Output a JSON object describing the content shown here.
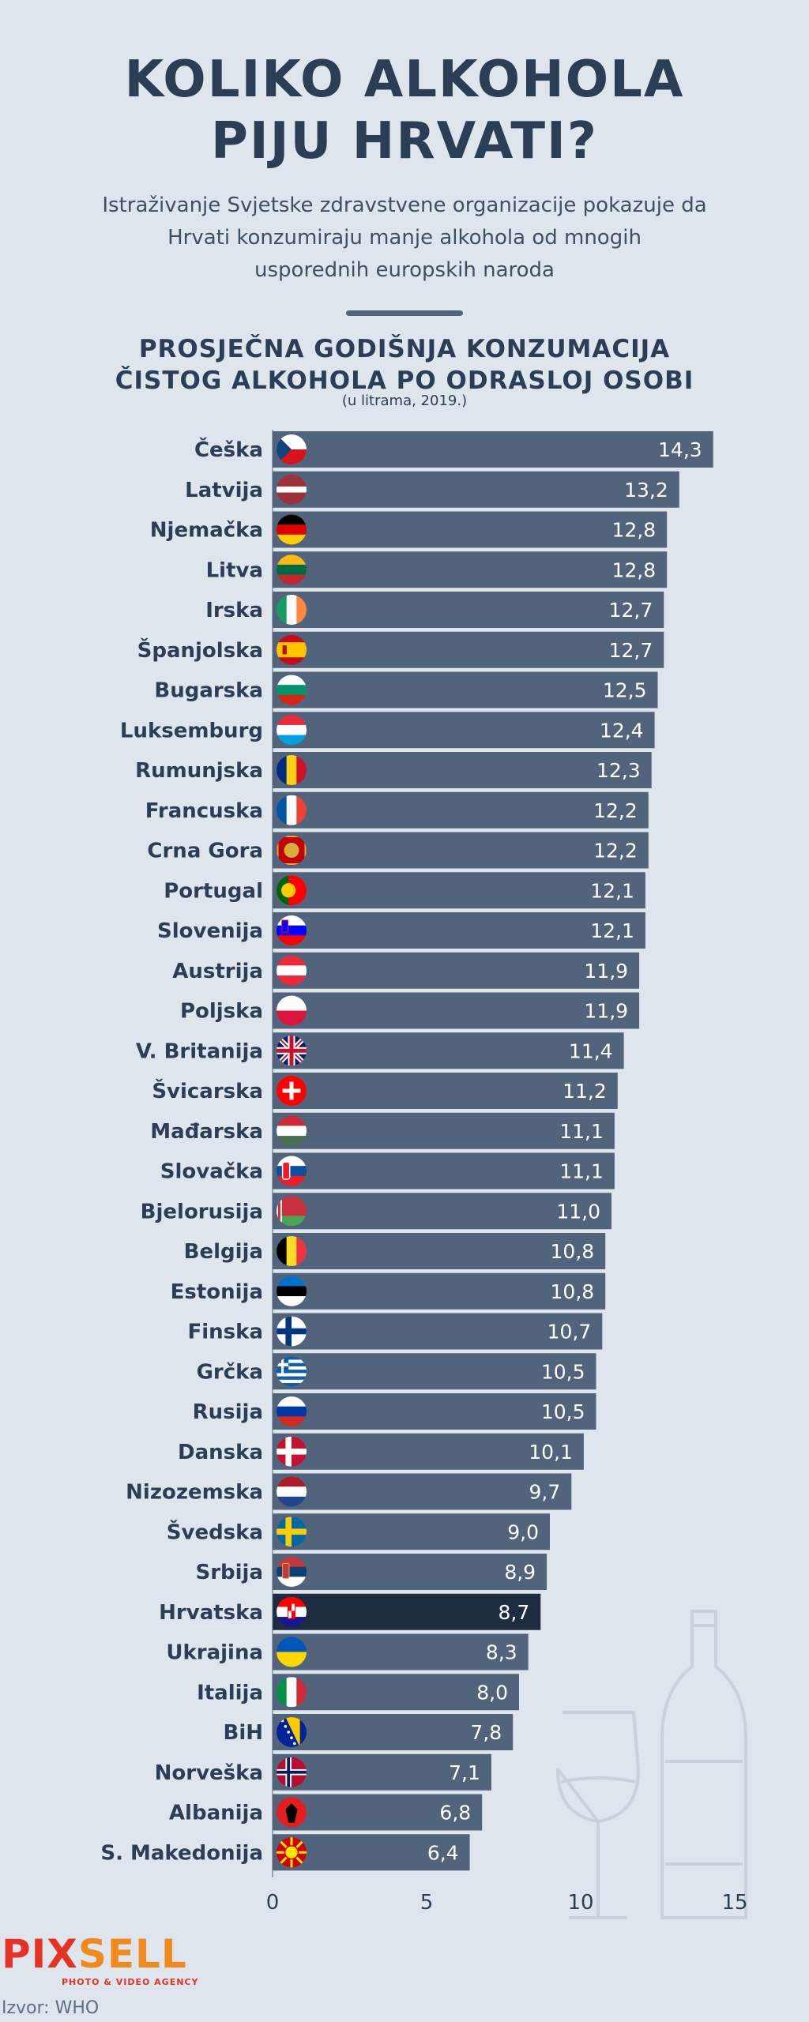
{
  "header": {
    "title_line1": "KOLIKO ALKOHOLA",
    "title_line2": "PIJU HRVATI?",
    "subtitle_line1": "Istraživanje Svjetske zdravstvene organizacije pokazuje da",
    "subtitle_line2": "Hrvati konzumiraju manje alkohola od mnogih",
    "subtitle_line3": "usporednih europskih naroda"
  },
  "colors": {
    "background": "#dfe5ec",
    "title": "#2c3e55",
    "bar": "#52647b",
    "highlight_bar": "#1e2c40",
    "bar_text": "#ffffff"
  },
  "chart_data": {
    "type": "bar",
    "orientation": "horizontal",
    "title_line1": "PROSJEČNA GODIŠNJA KONZUMACIJA",
    "title_line2": "ČISTOG ALKOHOLA PO ODRASLOJ OSOBI",
    "unit_note": "(u litrama, 2019.)",
    "categories": [
      "Češka",
      "Latvija",
      "Njemačka",
      "Litva",
      "Irska",
      "Španjolska",
      "Bugarska",
      "Luksemburg",
      "Rumunjska",
      "Francuska",
      "Crna Gora",
      "Portugal",
      "Slovenija",
      "Austrija",
      "Poljska",
      "V. Britanija",
      "Švicarska",
      "Mađarska",
      "Slovačka",
      "Bjelorusija",
      "Belgija",
      "Estonija",
      "Finska",
      "Grčka",
      "Rusija",
      "Danska",
      "Nizozemska",
      "Švedska",
      "Srbija",
      "Hrvatska",
      "Ukrajina",
      "Italija",
      "BiH",
      "Norveška",
      "Albanija",
      "S. Makedonija"
    ],
    "values": [
      14.3,
      13.2,
      12.8,
      12.8,
      12.7,
      12.7,
      12.5,
      12.4,
      12.3,
      12.2,
      12.2,
      12.1,
      12.1,
      11.9,
      11.9,
      11.4,
      11.2,
      11.1,
      11.1,
      11.0,
      10.8,
      10.8,
      10.7,
      10.5,
      10.5,
      10.1,
      9.7,
      9.0,
      8.9,
      8.7,
      8.3,
      8.0,
      7.8,
      7.1,
      6.8,
      6.4
    ],
    "value_labels": [
      "14,3",
      "13,2",
      "12,8",
      "12,8",
      "12,7",
      "12,7",
      "12,5",
      "12,4",
      "12,3",
      "12,2",
      "12,2",
      "12,1",
      "12,1",
      "11,9",
      "11,9",
      "11,4",
      "11,2",
      "11,1",
      "11,1",
      "11,0",
      "10,8",
      "10,8",
      "10,7",
      "10,5",
      "10,5",
      "10,1",
      "9,7",
      "9,0",
      "8,9",
      "8,7",
      "8,3",
      "8,0",
      "7,8",
      "7,1",
      "6,8",
      "6,4"
    ],
    "flags": [
      "cz",
      "lv",
      "de",
      "lt",
      "ie",
      "es",
      "bg",
      "lu",
      "ro",
      "fr",
      "me",
      "pt",
      "si",
      "at",
      "pl",
      "gb",
      "ch",
      "hu",
      "sk",
      "by",
      "be",
      "ee",
      "fi",
      "gr",
      "ru",
      "dk",
      "nl",
      "se",
      "rs",
      "hr",
      "ua",
      "it",
      "ba",
      "no",
      "al",
      "mk"
    ],
    "highlight": "Hrvatska",
    "xlim": [
      0,
      15
    ],
    "xticks": [
      0,
      5,
      10,
      15
    ],
    "grid": false,
    "legend": "none"
  },
  "footer": {
    "brand_part1": "PIX",
    "brand_part2": "SELL",
    "brand_tagline": "PHOTO & VIDEO AGENCY",
    "source": "Izvor: WHO"
  }
}
